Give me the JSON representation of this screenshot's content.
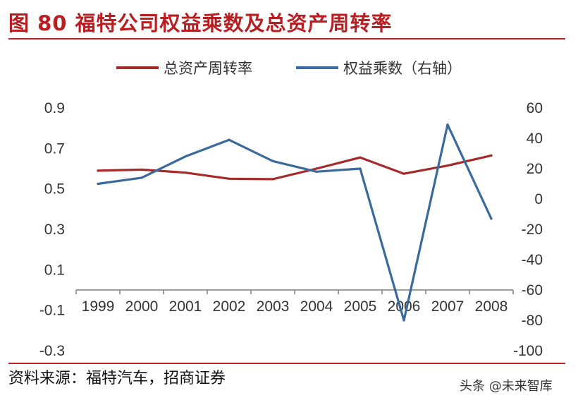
{
  "header": {
    "title": "图 80  福特公司权益乘数及总资产周转率"
  },
  "footer": {
    "source": "资料来源：福特汽车，招商证券",
    "watermark": "头条 @未来智库"
  },
  "colors": {
    "accent": "#b81f22",
    "series_red": "#a52a2a",
    "series_blue": "#3a6a9b",
    "axis": "#7f7f7f"
  },
  "chart_data": {
    "type": "line",
    "title": "",
    "x": [
      "1999",
      "2000",
      "2001",
      "2002",
      "2003",
      "2004",
      "2005",
      "2006",
      "2007",
      "2008"
    ],
    "left_axis": {
      "ylim": [
        -0.3,
        0.9
      ],
      "ticks": [
        "0.9",
        "0.7",
        "0.5",
        "0.3",
        "0.1",
        "-0.1",
        "-0.3"
      ]
    },
    "right_axis": {
      "ylim": [
        -100,
        60
      ],
      "ticks": [
        "60",
        "40",
        "20",
        "0",
        "-20",
        "-40",
        "-60",
        "-80",
        "-100"
      ]
    },
    "x_axis_at": 0.0,
    "grid": false,
    "legend_position": "top",
    "series": [
      {
        "name": "总资产周转率",
        "axis": "left",
        "color": "#a52a2a",
        "values": [
          0.59,
          0.595,
          0.58,
          0.55,
          0.548,
          0.6,
          0.655,
          0.575,
          0.615,
          0.665
        ]
      },
      {
        "name": "权益乘数（右轴）",
        "axis": "right",
        "color": "#3a6a9b",
        "values": [
          10,
          14,
          28,
          39,
          25,
          18,
          20,
          -80,
          49,
          -13
        ]
      }
    ]
  }
}
